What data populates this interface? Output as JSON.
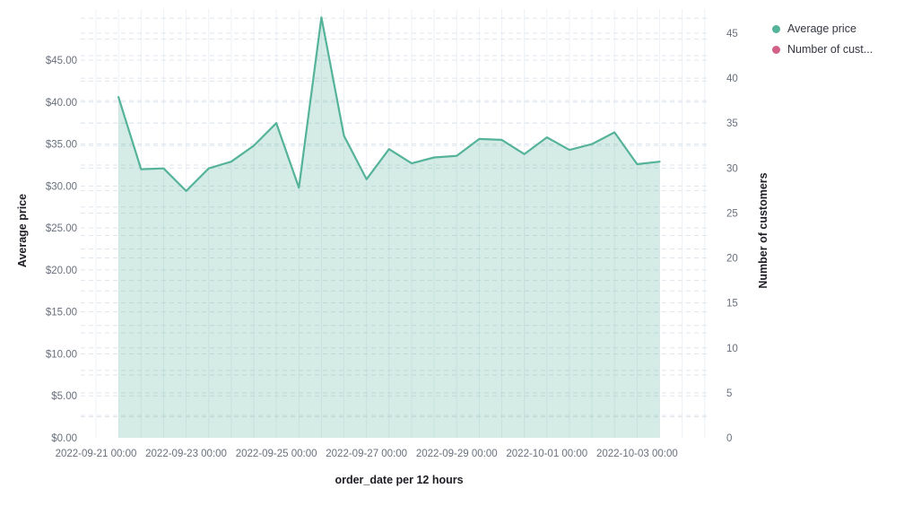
{
  "chart_data": {
    "type": "area",
    "title": "",
    "x_axis": {
      "title": "order_date per 12 hours",
      "tick_labels": [
        "2022-09-21 00:00",
        "2022-09-23 00:00",
        "2022-09-25 00:00",
        "2022-09-27 00:00",
        "2022-09-29 00:00",
        "2022-10-01 00:00",
        "2022-10-03 00:00"
      ]
    },
    "left_axis": {
      "title": "Average price",
      "tick_values": [
        0,
        5,
        10,
        15,
        20,
        25,
        30,
        35,
        40,
        45
      ],
      "tick_labels": [
        "$0.00",
        "$5.00",
        "$10.00",
        "$15.00",
        "$20.00",
        "$25.00",
        "$30.00",
        "$35.00",
        "$40.00",
        "$45.00"
      ],
      "range": [
        0,
        51
      ]
    },
    "right_axis": {
      "title": "Number of customers",
      "tick_values": [
        0,
        5,
        10,
        15,
        20,
        25,
        30,
        35,
        40,
        45
      ],
      "tick_labels": [
        "0",
        "5",
        "10",
        "15",
        "20",
        "25",
        "30",
        "35",
        "40",
        "45"
      ],
      "range": [
        0,
        47.7
      ]
    },
    "x": [
      "2022-09-21 12:00",
      "2022-09-22 00:00",
      "2022-09-22 12:00",
      "2022-09-23 00:00",
      "2022-09-23 12:00",
      "2022-09-24 00:00",
      "2022-09-24 12:00",
      "2022-09-25 00:00",
      "2022-09-25 12:00",
      "2022-09-26 00:00",
      "2022-09-26 12:00",
      "2022-09-27 00:00",
      "2022-09-27 12:00",
      "2022-09-28 00:00",
      "2022-09-28 12:00",
      "2022-09-29 00:00",
      "2022-09-29 12:00",
      "2022-09-30 00:00",
      "2022-09-30 12:00",
      "2022-10-01 00:00",
      "2022-10-01 12:00",
      "2022-10-02 00:00",
      "2022-10-02 12:00",
      "2022-10-03 00:00",
      "2022-10-03 12:00"
    ],
    "series": [
      {
        "name": "Average price",
        "axis": "left",
        "color": "#54b399",
        "fill_opacity": 0.25,
        "values": [
          40.6,
          32.0,
          32.1,
          29.4,
          32.1,
          32.9,
          34.8,
          37.5,
          29.8,
          50.1,
          36.0,
          30.8,
          34.4,
          32.7,
          33.4,
          33.6,
          35.6,
          35.5,
          33.8,
          35.8,
          34.3,
          35.0,
          36.4,
          32.6,
          32.9
        ]
      },
      {
        "name": "Number of customers",
        "axis": "right",
        "color": "#d36086",
        "values": []
      }
    ],
    "grid": true,
    "legend_position": "top-right"
  },
  "legend": {
    "items": [
      {
        "label": "Average price",
        "color": "#54b399"
      },
      {
        "label": "Number of cust...",
        "color": "#d36086"
      }
    ]
  }
}
